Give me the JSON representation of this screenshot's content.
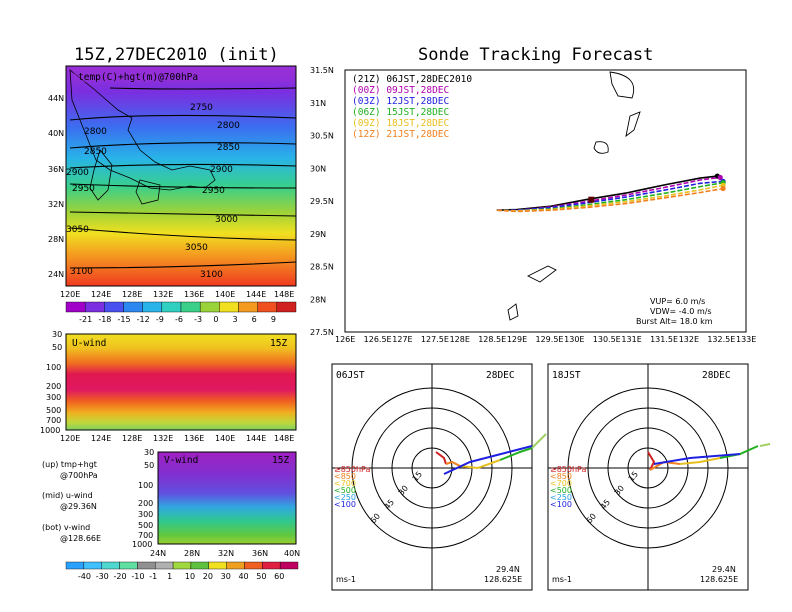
{
  "left": {
    "title": "15Z,27DEC2010 (init)",
    "map": {
      "overlay_label": "temp(C)+hgt(m)@700hPa",
      "lat_ticks": [
        "44N",
        "40N",
        "36N",
        "32N",
        "28N",
        "24N"
      ],
      "lon_ticks": [
        "120E",
        "124E",
        "128E",
        "132E",
        "136E",
        "140E",
        "144E",
        "148E"
      ],
      "contour_labels": [
        "2750",
        "2800",
        "2800",
        "2850",
        "2850",
        "2900",
        "2900",
        "2950",
        "2950",
        "3000",
        "3050",
        "3050",
        "3100",
        "3100"
      ]
    },
    "temp_colorbar": [
      "-21",
      "-18",
      "-15",
      "-12",
      "-9",
      "-6",
      "-3",
      "0",
      "3",
      "6",
      "9"
    ],
    "u_panel": {
      "label": "U-wind",
      "time": "15Z",
      "p_ticks": [
        "30",
        "50",
        "100",
        "200",
        "300",
        "500",
        "700",
        "1000"
      ],
      "lon_ticks": [
        "120E",
        "124E",
        "128E",
        "132E",
        "136E",
        "140E",
        "144E",
        "148E"
      ]
    },
    "v_panel": {
      "label": "V-wind",
      "time": "15Z",
      "p_ticks": [
        "30",
        "50",
        "100",
        "200",
        "300",
        "500",
        "700",
        "1000"
      ],
      "lat_ticks": [
        "24N",
        "28N",
        "32N",
        "36N",
        "40N"
      ]
    },
    "notes": [
      {
        "a": "(up) tmp+hgt",
        "b": "@700hPa"
      },
      {
        "a": "(mid) u-wind",
        "b": "@29.36N"
      },
      {
        "a": "(bot) v-wind",
        "b": "@128.66E"
      }
    ],
    "wind_colorbar": [
      "-40",
      "-30",
      "-20",
      "-10",
      "-1",
      "1",
      "10",
      "20",
      "30",
      "40",
      "50",
      "60"
    ]
  },
  "right": {
    "title": "Sonde Tracking Forecast",
    "legend": [
      {
        "text": "(21Z) 06JST,28DEC2010",
        "color": "#000000"
      },
      {
        "text": "(00Z) 09JST,28DEC",
        "color": "#b000b0"
      },
      {
        "text": "(03Z) 12JST,28DEC",
        "color": "#2020e0"
      },
      {
        "text": "(06Z) 15JST,28DEC",
        "color": "#20b020"
      },
      {
        "text": "(09Z) 18JST,28DEC",
        "color": "#e8c020"
      },
      {
        "text": "(12Z) 21JST,28DEC",
        "color": "#f08020"
      }
    ],
    "lat_ticks": [
      "31.5N",
      "31N",
      "30.5N",
      "30N",
      "29.5N",
      "29N",
      "28.5N",
      "28N",
      "27.5N"
    ],
    "lon_ticks": [
      "126E",
      "126.5E",
      "127E",
      "127.5E",
      "128E",
      "128.5E",
      "129E",
      "129.5E",
      "130E",
      "130.5E",
      "131E",
      "131.5E",
      "132E",
      "132.5E",
      "133E"
    ],
    "params": [
      "VUP=  6.0  m/s",
      "VDW= -4.0  m/s",
      "Burst Alt= 18.0  km"
    ],
    "hodo_left": {
      "time": "06JST",
      "date": "28DEC"
    },
    "hodo_right": {
      "time": "18JST",
      "date": "28DEC"
    },
    "hodo_levels": [
      "≥850hPa",
      "<850",
      "<700",
      "<500",
      "<250",
      "<100"
    ],
    "hodo_rings": [
      "15",
      "30",
      "45",
      "60"
    ],
    "hodo_unit": "ms-1",
    "hodo_lat": "29.4N",
    "hodo_lon": "128.625E"
  },
  "chart_data": [
    {
      "type": "heatmap",
      "title": "15Z,27DEC2010 (init)",
      "description_label": "temp(C)+hgt(m)@700hPa",
      "xlim": [
        120,
        149
      ],
      "ylim": [
        22,
        47
      ],
      "colorbar": [
        -21,
        -18,
        -15,
        -12,
        -9,
        -6,
        -3,
        0,
        3,
        6,
        9
      ],
      "height_contours_m": [
        2750,
        2800,
        2850,
        2900,
        2950,
        3000,
        3050,
        3100
      ]
    },
    {
      "type": "line",
      "title": "Sonde Tracking Forecast",
      "xlim": [
        126,
        133
      ],
      "ylim": [
        27.5,
        31.5
      ],
      "series": [
        {
          "name": "(21Z) 06JST,28DEC2010",
          "x": [
            128.65,
            129.0,
            129.6,
            130.2,
            130.9,
            131.6,
            132.2,
            132.5
          ],
          "y": [
            29.36,
            29.37,
            29.42,
            29.52,
            29.62,
            29.75,
            29.85,
            29.88
          ]
        },
        {
          "name": "(00Z) 09JST,28DEC",
          "x": [
            128.65,
            129.0,
            129.6,
            130.2,
            130.9,
            131.6,
            132.2,
            132.55
          ],
          "y": [
            29.36,
            29.36,
            29.41,
            29.49,
            29.59,
            29.71,
            29.82,
            29.86
          ]
        },
        {
          "name": "(03Z) 12JST,28DEC",
          "x": [
            128.65,
            129.0,
            129.6,
            130.2,
            130.9,
            131.6,
            132.2,
            132.6
          ],
          "y": [
            29.36,
            29.36,
            29.4,
            29.47,
            29.56,
            29.67,
            29.77,
            29.8
          ]
        },
        {
          "name": "(06Z) 15JST,28DEC",
          "x": [
            128.65,
            129.0,
            129.6,
            130.2,
            130.9,
            131.6,
            132.2,
            132.6
          ],
          "y": [
            29.36,
            29.35,
            29.38,
            29.44,
            29.52,
            29.62,
            29.72,
            29.78
          ]
        },
        {
          "name": "(09Z) 18JST,28DEC",
          "x": [
            128.65,
            129.0,
            129.6,
            130.2,
            130.9,
            131.6,
            132.2,
            132.6
          ],
          "y": [
            29.36,
            29.35,
            29.37,
            29.42,
            29.49,
            29.58,
            29.67,
            29.74
          ]
        },
        {
          "name": "(12Z) 21JST,28DEC",
          "x": [
            128.65,
            129.0,
            129.6,
            130.2,
            130.9,
            131.6,
            132.2,
            132.6
          ],
          "y": [
            29.36,
            29.34,
            29.36,
            29.4,
            29.46,
            29.55,
            29.63,
            29.69
          ]
        }
      ],
      "params": {
        "VUP_m_s": 6.0,
        "VDW_m_s": -4.0,
        "burst_alt_km": 18.0
      }
    }
  ]
}
